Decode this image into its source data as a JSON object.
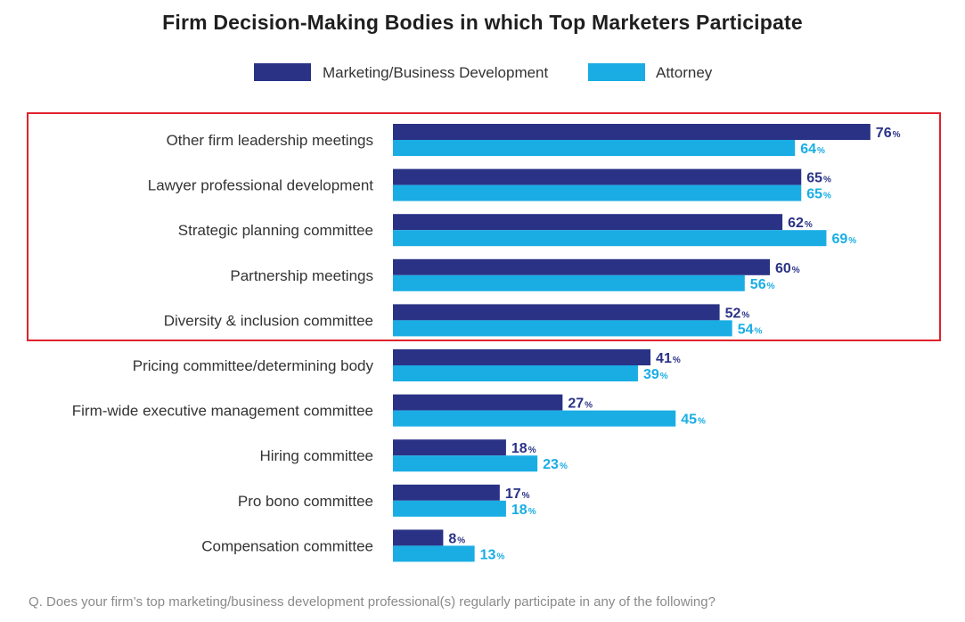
{
  "chart_data": {
    "type": "bar",
    "orientation": "horizontal",
    "title": "Firm Decision-Making Bodies in which Top Marketers Participate",
    "categories": [
      "Other firm leadership meetings",
      "Lawyer professional development",
      "Strategic planning committee",
      "Partnership meetings",
      "Diversity & inclusion committee",
      "Pricing committee/determining body",
      "Firm-wide executive management committee",
      "Hiring committee",
      "Pro bono committee",
      "Compensation committee"
    ],
    "series": [
      {
        "name": "Marketing/Business Development",
        "color": "#2a3286",
        "values": [
          76,
          65,
          62,
          60,
          52,
          41,
          27,
          18,
          17,
          8
        ]
      },
      {
        "name": "Attorney",
        "color": "#19ade4",
        "values": [
          64,
          65,
          69,
          56,
          54,
          39,
          45,
          23,
          18,
          13
        ]
      }
    ],
    "value_suffix": "%",
    "highlighted_categories": [
      "Other firm leadership meetings",
      "Lawyer professional development",
      "Strategic planning committee",
      "Partnership meetings",
      "Diversity & inclusion committee"
    ],
    "highlight_color": "#e0222c",
    "xlim": [
      0,
      100
    ],
    "grid": false,
    "legend_position": "top-center"
  },
  "footnote": "Q. Does your firm’s top marketing/business development professional(s) regularly participate in any of the following?"
}
